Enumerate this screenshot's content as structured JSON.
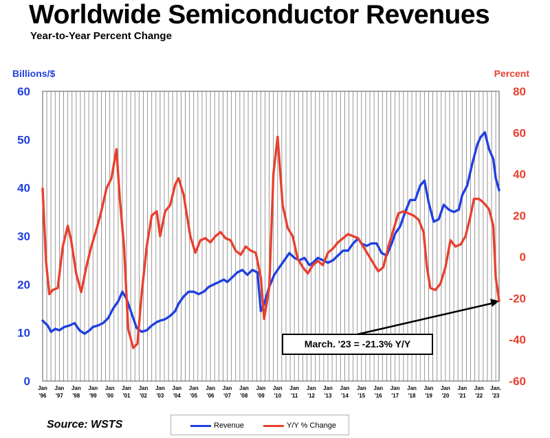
{
  "title": "Worldwide Semiconductor Revenues",
  "subtitle": "Year-to-Year Percent Change",
  "source": "Source: WSTS",
  "colors": {
    "revenue": "#1f3fe0",
    "yoy": "#e8402e",
    "grid": "#8a8a8a",
    "left_axis": "#1f3fe0",
    "right_axis": "#e8402e"
  },
  "chart_data": {
    "type": "line",
    "title": "Worldwide Semiconductor Revenues",
    "subtitle": "Year-to-Year Percent Change",
    "y_left": {
      "label": "Billions/$",
      "lim": [
        0,
        60
      ],
      "ticks": [
        "0",
        "10",
        "20",
        "30",
        "40",
        "50",
        "60"
      ]
    },
    "y_right": {
      "label": "Percent",
      "lim": [
        -60,
        80
      ],
      "ticks": [
        "-60",
        "-40",
        "-20",
        "0",
        "20",
        "40",
        "60",
        "80"
      ]
    },
    "x_ticks": [
      {
        "top": "Jan",
        "bottom": "'96"
      },
      {
        "top": "Jan",
        "bottom": "'97"
      },
      {
        "top": "Jan",
        "bottom": "'98"
      },
      {
        "top": "Jan",
        "bottom": "'99"
      },
      {
        "top": "Jan",
        "bottom": "'00"
      },
      {
        "top": "Jan",
        "bottom": "'01"
      },
      {
        "top": "Jan",
        "bottom": "'02"
      },
      {
        "top": "Jan",
        "bottom": "'03"
      },
      {
        "top": "Jan",
        "bottom": "'04"
      },
      {
        "top": "Jan",
        "bottom": "'05"
      },
      {
        "top": "Jan",
        "bottom": "'06"
      },
      {
        "top": "Jan",
        "bottom": "'07"
      },
      {
        "top": "Jan",
        "bottom": "'08"
      },
      {
        "top": "Jan",
        "bottom": "'09"
      },
      {
        "top": "Jan",
        "bottom": "'10"
      },
      {
        "top": "Jan",
        "bottom": "'11"
      },
      {
        "top": "Jan",
        "bottom": "'12"
      },
      {
        "top": "Jan",
        "bottom": "'13"
      },
      {
        "top": "Jan",
        "bottom": "'14"
      },
      {
        "top": "Jan",
        "bottom": "'15"
      },
      {
        "top": "Jan",
        "bottom": "'16"
      },
      {
        "top": "Jan",
        "bottom": "'17"
      },
      {
        "top": "Jan",
        "bottom": "'18"
      },
      {
        "top": "Jan",
        "bottom": "'19"
      },
      {
        "top": "Jan",
        "bottom": "'20"
      },
      {
        "top": "Jan",
        "bottom": "'21"
      },
      {
        "top": "Jan",
        "bottom": "'22"
      },
      {
        "top": "Jan.",
        "bottom": "'23"
      }
    ],
    "x_range": [
      1996.0,
      2023.2
    ],
    "grid": true,
    "legend_position": "bottom",
    "series": [
      {
        "name": "Revenue",
        "axis": "left",
        "color": "#1f3fe0",
        "x": [
          1996.0,
          1996.3,
          1996.5,
          1996.75,
          1997.0,
          1997.3,
          1997.6,
          1997.9,
          1998.2,
          1998.5,
          1998.8,
          1999.0,
          1999.3,
          1999.6,
          1999.9,
          2000.2,
          2000.5,
          2000.75,
          2001.0,
          2001.3,
          2001.6,
          2001.9,
          2002.2,
          2002.5,
          2002.8,
          2003.0,
          2003.3,
          2003.6,
          2003.9,
          2004.1,
          2004.4,
          2004.7,
          2005.0,
          2005.3,
          2005.6,
          2005.9,
          2006.2,
          2006.5,
          2006.8,
          2007.0,
          2007.3,
          2007.6,
          2007.9,
          2008.2,
          2008.5,
          2008.8,
          2009.0,
          2009.2,
          2009.5,
          2009.8,
          2010.1,
          2010.4,
          2010.7,
          2011.0,
          2011.3,
          2011.6,
          2011.9,
          2012.1,
          2012.4,
          2012.7,
          2013.0,
          2013.3,
          2013.6,
          2013.9,
          2014.2,
          2014.5,
          2014.8,
          2015.0,
          2015.3,
          2015.6,
          2015.9,
          2016.2,
          2016.5,
          2016.8,
          2017.0,
          2017.3,
          2017.6,
          2017.9,
          2018.2,
          2018.5,
          2018.75,
          2019.0,
          2019.3,
          2019.6,
          2019.9,
          2020.2,
          2020.5,
          2020.8,
          2021.0,
          2021.3,
          2021.6,
          2021.9,
          2022.1,
          2022.35,
          2022.6,
          2022.85,
          2023.0,
          2023.2
        ],
        "values": [
          12.5,
          11.5,
          10.2,
          10.8,
          10.5,
          11.2,
          11.5,
          12.0,
          10.5,
          9.8,
          10.5,
          11.2,
          11.5,
          12.0,
          13.0,
          15.0,
          16.5,
          18.5,
          17.0,
          14.0,
          11.0,
          10.2,
          10.5,
          11.5,
          12.2,
          12.5,
          12.8,
          13.5,
          14.5,
          16.0,
          17.5,
          18.5,
          18.5,
          18.0,
          18.5,
          19.5,
          20.0,
          20.5,
          21.0,
          20.5,
          21.5,
          22.5,
          23.0,
          22.0,
          23.0,
          22.5,
          14.5,
          16.0,
          19.5,
          22.0,
          23.5,
          25.0,
          26.5,
          25.5,
          25.0,
          25.5,
          24.0,
          24.5,
          25.5,
          25.0,
          24.5,
          25.0,
          26.0,
          27.0,
          27.0,
          28.5,
          29.5,
          28.5,
          28.0,
          28.5,
          28.5,
          26.5,
          26.0,
          28.5,
          30.5,
          32.0,
          35.0,
          37.5,
          37.5,
          40.5,
          41.5,
          37.0,
          33.0,
          33.5,
          36.5,
          35.5,
          35.0,
          35.5,
          38.5,
          40.5,
          45.0,
          49.0,
          50.5,
          51.5,
          48.0,
          46.0,
          42.0,
          39.5
        ]
      },
      {
        "name": "Y/Y % Change",
        "axis": "right",
        "color": "#e8402e",
        "x": [
          1996.0,
          1996.2,
          1996.4,
          1996.6,
          1996.9,
          1997.2,
          1997.5,
          1997.7,
          1998.0,
          1998.3,
          1998.6,
          1998.9,
          1999.2,
          1999.5,
          1999.8,
          2000.1,
          2000.4,
          2000.6,
          2000.85,
          2001.1,
          2001.4,
          2001.65,
          2001.9,
          2002.2,
          2002.5,
          2002.8,
          2003.0,
          2003.3,
          2003.6,
          2003.9,
          2004.1,
          2004.4,
          2004.6,
          2004.8,
          2005.1,
          2005.4,
          2005.7,
          2006.0,
          2006.3,
          2006.6,
          2006.9,
          2007.2,
          2007.5,
          2007.8,
          2008.1,
          2008.4,
          2008.7,
          2009.0,
          2009.2,
          2009.5,
          2009.75,
          2010.0,
          2010.3,
          2010.6,
          2010.9,
          2011.2,
          2011.5,
          2011.8,
          2012.1,
          2012.4,
          2012.7,
          2013.0,
          2013.3,
          2013.6,
          2013.9,
          2014.2,
          2014.5,
          2014.8,
          2015.1,
          2015.4,
          2015.7,
          2016.0,
          2016.3,
          2016.6,
          2016.9,
          2017.2,
          2017.5,
          2017.8,
          2018.1,
          2018.4,
          2018.7,
          2018.9,
          2019.1,
          2019.4,
          2019.7,
          2020.0,
          2020.3,
          2020.6,
          2020.9,
          2021.2,
          2021.5,
          2021.7,
          2022.0,
          2022.3,
          2022.6,
          2022.85,
          2023.0,
          2023.2
        ],
        "values": [
          33,
          -2,
          -18,
          -16,
          -15,
          5,
          15,
          8,
          -8,
          -17,
          -5,
          5,
          13,
          22,
          33,
          38,
          52,
          28,
          5,
          -35,
          -44,
          -42,
          -18,
          5,
          20,
          22,
          10,
          22,
          25,
          35,
          38,
          30,
          20,
          10,
          2,
          8,
          9,
          7,
          10,
          12,
          9,
          8,
          3,
          1,
          5,
          3,
          2,
          -10,
          -30,
          -15,
          40,
          58,
          25,
          14,
          10,
          -1,
          -5,
          -8,
          -4,
          -2,
          -4,
          2,
          4,
          7,
          9,
          11,
          10,
          9,
          5,
          1,
          -3,
          -7,
          -5,
          5,
          13,
          21,
          22,
          21,
          20,
          18,
          12,
          -5,
          -15,
          -16,
          -13,
          -5,
          8,
          5,
          6,
          10,
          20,
          28,
          28,
          26,
          23,
          15,
          -10,
          -21.3
        ]
      }
    ],
    "annotation": {
      "text": "March. '23 = -21.3% Y/Y",
      "x": 2023.2,
      "y": -21.3,
      "axis": "right"
    }
  },
  "legend": {
    "revenue_label": "Revenue",
    "yoy_label": "Y/Y % Change"
  }
}
